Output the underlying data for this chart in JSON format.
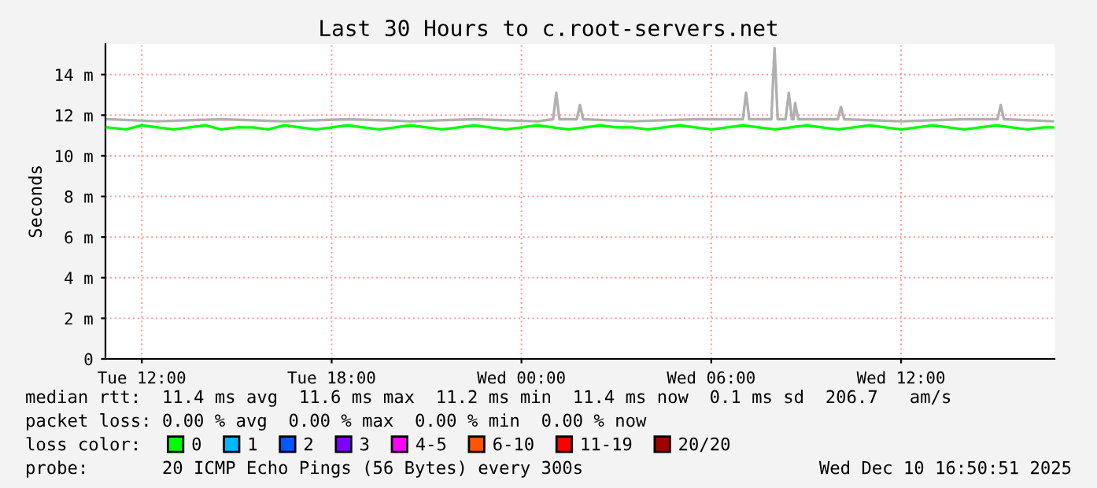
{
  "chart_data": {
    "type": "line",
    "title": "Last 30 Hours to c.root-servers.net",
    "ylabel": "Seconds",
    "xlim": [
      "2025-12-09T10:51",
      "2025-12-10T16:51"
    ],
    "xticks": [
      {
        "value": "2025-12-09T12:00",
        "label": "Tue 12:00"
      },
      {
        "value": "2025-12-09T18:00",
        "label": "Tue 18:00"
      },
      {
        "value": "2025-12-10T00:00",
        "label": "Wed 00:00"
      },
      {
        "value": "2025-12-10T06:00",
        "label": "Wed 06:00"
      },
      {
        "value": "2025-12-10T12:00",
        "label": "Wed 12:00"
      }
    ],
    "ylim": [
      0,
      15.5
    ],
    "yticks": [
      0,
      {
        "value": 2,
        "label": "2 m"
      },
      {
        "value": 4,
        "label": "4 m"
      },
      {
        "value": 6,
        "label": "6 m"
      },
      {
        "value": 8,
        "label": "8 m"
      },
      {
        "value": 10,
        "label": "10 m"
      },
      {
        "value": 12,
        "label": "12 m"
      },
      {
        "value": 14,
        "label": "14 m"
      }
    ],
    "grid": true,
    "legend": "bottom",
    "legend_title": "loss color:",
    "series": [
      {
        "color": "#b0b0b0",
        "x": [
          "2025-12-09T10:54",
          "2025-12-09T12:30",
          "2025-12-09T14:30",
          "2025-12-09T16:30",
          "2025-12-09T18:30",
          "2025-12-09T20:30",
          "2025-12-09T22:30",
          "2025-12-10T00:30",
          "2025-12-10T01:00",
          "2025-12-10T01:06",
          "2025-12-10T01:12",
          "2025-12-10T01:45",
          "2025-12-10T01:51",
          "2025-12-10T01:57",
          "2025-12-10T03:30",
          "2025-12-10T05:30",
          "2025-12-10T07:00",
          "2025-12-10T07:06",
          "2025-12-10T07:12",
          "2025-12-10T07:54",
          "2025-12-10T08:00",
          "2025-12-10T08:06",
          "2025-12-10T08:21",
          "2025-12-10T08:27",
          "2025-12-10T08:33",
          "2025-12-10T08:36",
          "2025-12-10T08:39",
          "2025-12-10T08:45",
          "2025-12-10T10:00",
          "2025-12-10T10:06",
          "2025-12-10T10:12",
          "2025-12-10T12:00",
          "2025-12-10T14:00",
          "2025-12-10T15:03",
          "2025-12-10T15:09",
          "2025-12-10T15:15",
          "2025-12-10T16:48"
        ],
        "values": [
          11.8,
          11.7,
          11.8,
          11.7,
          11.8,
          11.7,
          11.8,
          11.7,
          11.8,
          13.1,
          11.8,
          11.8,
          12.5,
          11.8,
          11.7,
          11.8,
          11.8,
          13.1,
          11.8,
          11.8,
          15.3,
          11.8,
          11.8,
          13.1,
          11.8,
          11.8,
          12.6,
          11.8,
          11.8,
          12.4,
          11.8,
          11.7,
          11.8,
          11.8,
          12.5,
          11.8,
          11.7
        ]
      },
      {
        "name": "0",
        "color": "#00ff00",
        "x": [
          "2025-12-09T10:54",
          "2025-12-09T11:30",
          "2025-12-09T12:00",
          "2025-12-09T12:30",
          "2025-12-09T13:00",
          "2025-12-09T13:30",
          "2025-12-09T14:00",
          "2025-12-09T14:30",
          "2025-12-09T15:00",
          "2025-12-09T15:30",
          "2025-12-09T16:00",
          "2025-12-09T16:30",
          "2025-12-09T17:00",
          "2025-12-09T17:30",
          "2025-12-09T18:00",
          "2025-12-09T18:30",
          "2025-12-09T19:00",
          "2025-12-09T19:30",
          "2025-12-09T20:00",
          "2025-12-09T20:30",
          "2025-12-09T21:00",
          "2025-12-09T21:30",
          "2025-12-09T22:00",
          "2025-12-09T22:30",
          "2025-12-09T23:00",
          "2025-12-09T23:30",
          "2025-12-10T00:00",
          "2025-12-10T00:30",
          "2025-12-10T01:00",
          "2025-12-10T01:30",
          "2025-12-10T02:00",
          "2025-12-10T02:30",
          "2025-12-10T03:00",
          "2025-12-10T03:30",
          "2025-12-10T04:00",
          "2025-12-10T04:30",
          "2025-12-10T05:00",
          "2025-12-10T05:30",
          "2025-12-10T06:00",
          "2025-12-10T06:30",
          "2025-12-10T07:00",
          "2025-12-10T07:30",
          "2025-12-10T08:00",
          "2025-12-10T08:30",
          "2025-12-10T09:00",
          "2025-12-10T09:30",
          "2025-12-10T10:00",
          "2025-12-10T10:30",
          "2025-12-10T11:00",
          "2025-12-10T11:30",
          "2025-12-10T12:00",
          "2025-12-10T12:30",
          "2025-12-10T13:00",
          "2025-12-10T13:30",
          "2025-12-10T14:00",
          "2025-12-10T14:30",
          "2025-12-10T15:00",
          "2025-12-10T15:30",
          "2025-12-10T16:00",
          "2025-12-10T16:30",
          "2025-12-10T16:48"
        ],
        "values": [
          11.4,
          11.3,
          11.5,
          11.4,
          11.3,
          11.4,
          11.5,
          11.3,
          11.4,
          11.4,
          11.3,
          11.5,
          11.4,
          11.3,
          11.4,
          11.5,
          11.4,
          11.3,
          11.4,
          11.5,
          11.4,
          11.3,
          11.4,
          11.5,
          11.4,
          11.3,
          11.4,
          11.5,
          11.4,
          11.3,
          11.4,
          11.5,
          11.4,
          11.4,
          11.3,
          11.4,
          11.5,
          11.4,
          11.3,
          11.4,
          11.5,
          11.4,
          11.3,
          11.4,
          11.5,
          11.4,
          11.3,
          11.4,
          11.5,
          11.4,
          11.3,
          11.4,
          11.5,
          11.4,
          11.3,
          11.4,
          11.5,
          11.4,
          11.3,
          11.4,
          11.4
        ]
      },
      {
        "name": "1",
        "color": "#00b8ff"
      },
      {
        "name": "2",
        "color": "#0059ff"
      },
      {
        "name": "3",
        "color": "#7e00ff"
      },
      {
        "name": "4-5",
        "color": "#ff00ff"
      },
      {
        "name": "6-10",
        "color": "#ff5500"
      },
      {
        "name": "11-19",
        "color": "#ff0000"
      },
      {
        "name": "20/20",
        "color": "#a10000"
      }
    ],
    "annotations": [
      "median rtt:  11.4 ms avg  11.6 ms max  11.2 ms min  11.4 ms now  0.1 ms sd  206.7   am/s",
      "packet loss: 0.00 % avg  0.00 % max  0.00 % min  0.00 % now",
      "probe:       20 ICMP Echo Pings (56 Bytes) every 300s",
      "Wed Dec 10 16:50:51 2025"
    ]
  }
}
